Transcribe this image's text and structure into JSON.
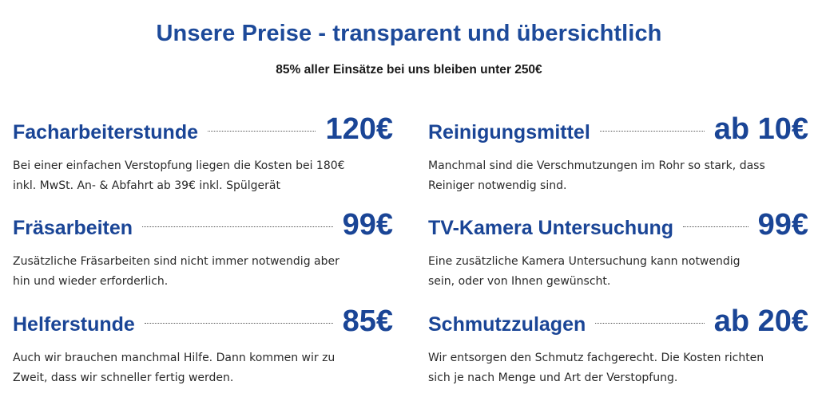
{
  "header": {
    "title": "Unsere Preise - transparent und übersichtlich",
    "subtitle": "85% aller Einsätze bei uns bleiben unter 250€"
  },
  "prices": [
    {
      "name": "Facharbeiterstunde",
      "price": "120€",
      "line1": "Bei einer einfachen Verstopfung liegen die Kosten bei 180€",
      "line2": "inkl. MwSt. An- & Abfahrt ab 39€ inkl. Spülgerät"
    },
    {
      "name": "Reinigungsmittel",
      "price": "ab 10€",
      "line1": "Manchmal sind die Verschmutzungen im Rohr so stark, dass",
      "line2": "Reiniger notwendig sind."
    },
    {
      "name": "Fräsarbeiten",
      "price": "99€",
      "line1": "Zusätzliche Fräsarbeiten sind nicht immer notwendig aber",
      "line2": "hin und wieder erforderlich."
    },
    {
      "name": "TV-Kamera Untersuchung",
      "price": "99€",
      "line1": "Eine zusätzliche Kamera Untersuchung kann notwendig",
      "line2": "sein, oder von Ihnen gewünscht."
    },
    {
      "name": "Helferstunde",
      "price": "85€",
      "line1": "Auch wir brauchen manchmal Hilfe. Dann kommen wir zu",
      "line2": "Zweit, dass wir schneller fertig werden."
    },
    {
      "name": "Schmutzzulagen",
      "price": "ab 20€",
      "line1": "Wir entsorgen den Schmutz fachgerecht. Die Kosten richten",
      "line2": "sich je nach Menge und Art der Verstopfung."
    }
  ],
  "colors": {
    "accent": "#1a4596",
    "text": "#2a2a2a",
    "background": "#ffffff"
  }
}
